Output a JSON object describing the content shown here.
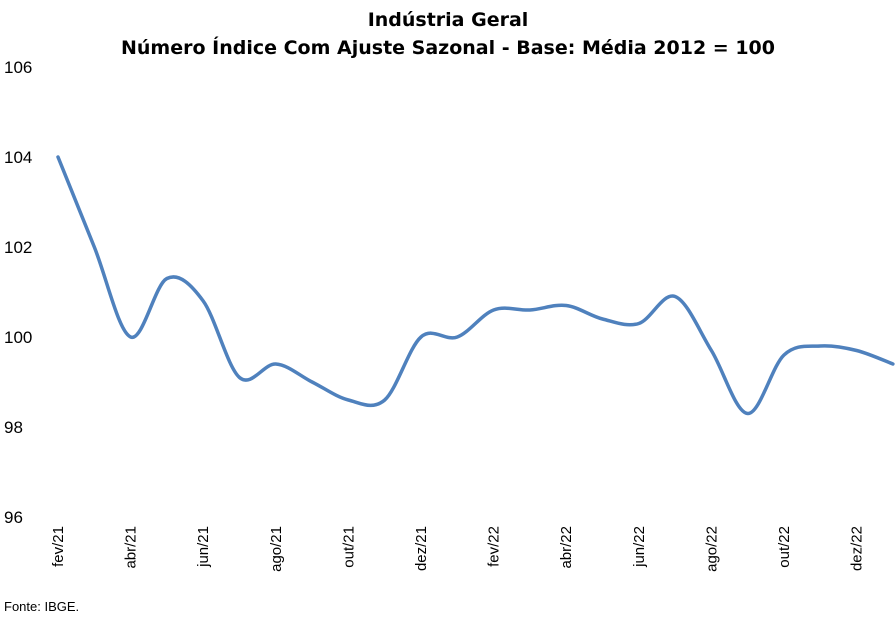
{
  "chart_data": {
    "type": "line",
    "title": "Indústria Geral",
    "subtitle": "Número Índice Com Ajuste Sazonal - Base: Média 2012 = 100",
    "xlabel": "",
    "ylabel": "",
    "ylim": [
      96,
      106
    ],
    "yticks": [
      96,
      98,
      100,
      102,
      104,
      106
    ],
    "grid": false,
    "legend": "none",
    "categories": [
      "fev/21",
      "mar/21",
      "abr/21",
      "mai/21",
      "jun/21",
      "jul/21",
      "ago/21",
      "set/21",
      "out/21",
      "nov/21",
      "dez/21",
      "jan/22",
      "fev/22",
      "mar/22",
      "abr/22",
      "mai/22",
      "jun/22",
      "jul/22",
      "ago/22",
      "set/22",
      "out/22",
      "nov/22",
      "dez/22",
      "jan/23"
    ],
    "x_tick_labels": [
      "fev/21",
      "",
      "abr/21",
      "",
      "jun/21",
      "",
      "ago/21",
      "",
      "out/21",
      "",
      "dez/21",
      "",
      "fev/22",
      "",
      "abr/22",
      "",
      "jun/22",
      "",
      "ago/22",
      "",
      "out/22",
      "",
      "dez/22",
      ""
    ],
    "series": [
      {
        "color": "#4f81bd",
        "values": [
          104.0,
          102.0,
          100.0,
          101.3,
          100.8,
          99.1,
          99.4,
          99.0,
          98.6,
          98.6,
          100.0,
          100.0,
          100.6,
          100.6,
          100.7,
          100.4,
          100.3,
          100.9,
          99.7,
          98.3,
          99.6,
          99.8,
          99.7,
          99.4
        ]
      }
    ]
  },
  "footer": {
    "source": "Fonte: IBGE."
  }
}
